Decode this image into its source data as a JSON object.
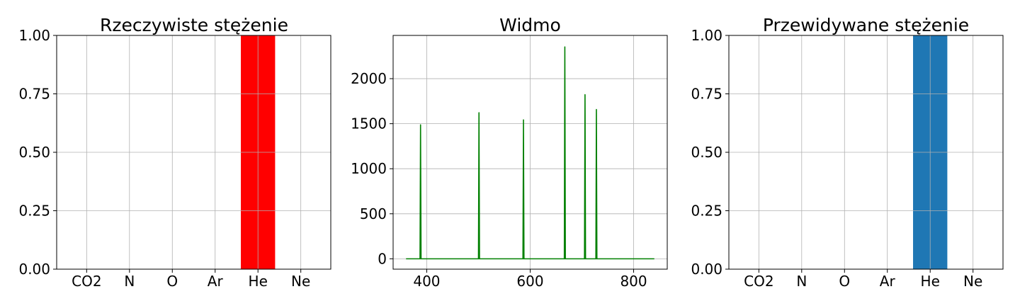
{
  "chart_data": [
    {
      "type": "bar",
      "title": "Rzeczywiste stężenie",
      "categories": [
        "CO2",
        "N",
        "O",
        "Ar",
        "He",
        "Ne"
      ],
      "values": [
        0,
        0,
        0,
        0,
        1.0,
        0
      ],
      "color": "#ff0000",
      "ylim": [
        0,
        1.0
      ],
      "yticks": [
        "0.00",
        "0.25",
        "0.50",
        "0.75",
        "1.00"
      ],
      "grid": true
    },
    {
      "type": "line",
      "title": "Widmo",
      "color": "#008000",
      "x_range": [
        360,
        840
      ],
      "baseline": 0,
      "peaks": [
        {
          "x": 388,
          "y": 1490
        },
        {
          "x": 501,
          "y": 1625
        },
        {
          "x": 587,
          "y": 1545
        },
        {
          "x": 667,
          "y": 2355
        },
        {
          "x": 706,
          "y": 1825
        },
        {
          "x": 728,
          "y": 1660
        }
      ],
      "xlim": [
        335,
        865
      ],
      "ylim": [
        -115,
        2480
      ],
      "xticks": [
        "400",
        "600",
        "800"
      ],
      "yticks": [
        "0",
        "500",
        "1000",
        "1500",
        "2000"
      ],
      "grid": true
    },
    {
      "type": "bar",
      "title": "Przewidywane stężenie",
      "categories": [
        "CO2",
        "N",
        "O",
        "Ar",
        "He",
        "Ne"
      ],
      "values": [
        0,
        0,
        0,
        0,
        1.0,
        0
      ],
      "color": "#1f77b4",
      "ylim": [
        0,
        1.0
      ],
      "yticks": [
        "0.00",
        "0.25",
        "0.50",
        "0.75",
        "1.00"
      ],
      "grid": true
    }
  ]
}
